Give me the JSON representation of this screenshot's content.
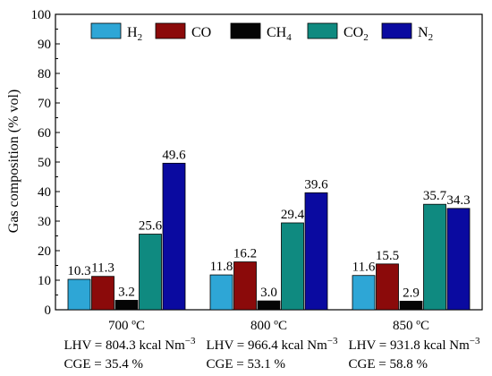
{
  "chart_data": {
    "type": "bar",
    "ylabel": "Gas composition (% vol)",
    "ylim": [
      0,
      100
    ],
    "yticks": [
      0,
      10,
      20,
      30,
      40,
      50,
      60,
      70,
      80,
      90,
      100
    ],
    "categories": [
      "700 ºC",
      "800 ºC",
      "850 ºC"
    ],
    "legend_position": "top",
    "series": [
      {
        "name": "H",
        "subscript": "2",
        "color": "#2ea6d6",
        "values": [
          10.3,
          11.8,
          11.6
        ],
        "labels": [
          "10.3",
          "11.8",
          "11.6"
        ]
      },
      {
        "name": "CO",
        "subscript": "",
        "color": "#8b0a0a",
        "values": [
          11.3,
          16.2,
          15.5
        ],
        "labels": [
          "11.3",
          "16.2",
          "15.5"
        ]
      },
      {
        "name": "CH",
        "subscript": "4",
        "color": "#050505",
        "values": [
          3.2,
          3.0,
          2.9
        ],
        "labels": [
          "3.2",
          "3.0",
          "2.9"
        ]
      },
      {
        "name": "CO",
        "subscript": "2",
        "color": "#0f8a80",
        "values": [
          25.6,
          29.4,
          35.7
        ],
        "labels": [
          "25.6",
          "29.4",
          "35.7"
        ]
      },
      {
        "name": "N",
        "subscript": "2",
        "color": "#0a0aa0",
        "values": [
          49.6,
          39.6,
          34.3
        ],
        "labels": [
          "49.6",
          "39.6",
          "34.3"
        ]
      }
    ],
    "annotations": [
      {
        "lhv": "LHV = 804.3 kcal Nm",
        "lhv_exp": "−3",
        "cge": "CGE = 35.4 %"
      },
      {
        "lhv": "LHV = 966.4 kcal Nm",
        "lhv_exp": "−3",
        "cge": "CGE = 53.1 %"
      },
      {
        "lhv": "LHV = 931.8 kcal Nm",
        "lhv_exp": "−3",
        "cge": "CGE = 58.8 %"
      }
    ]
  }
}
